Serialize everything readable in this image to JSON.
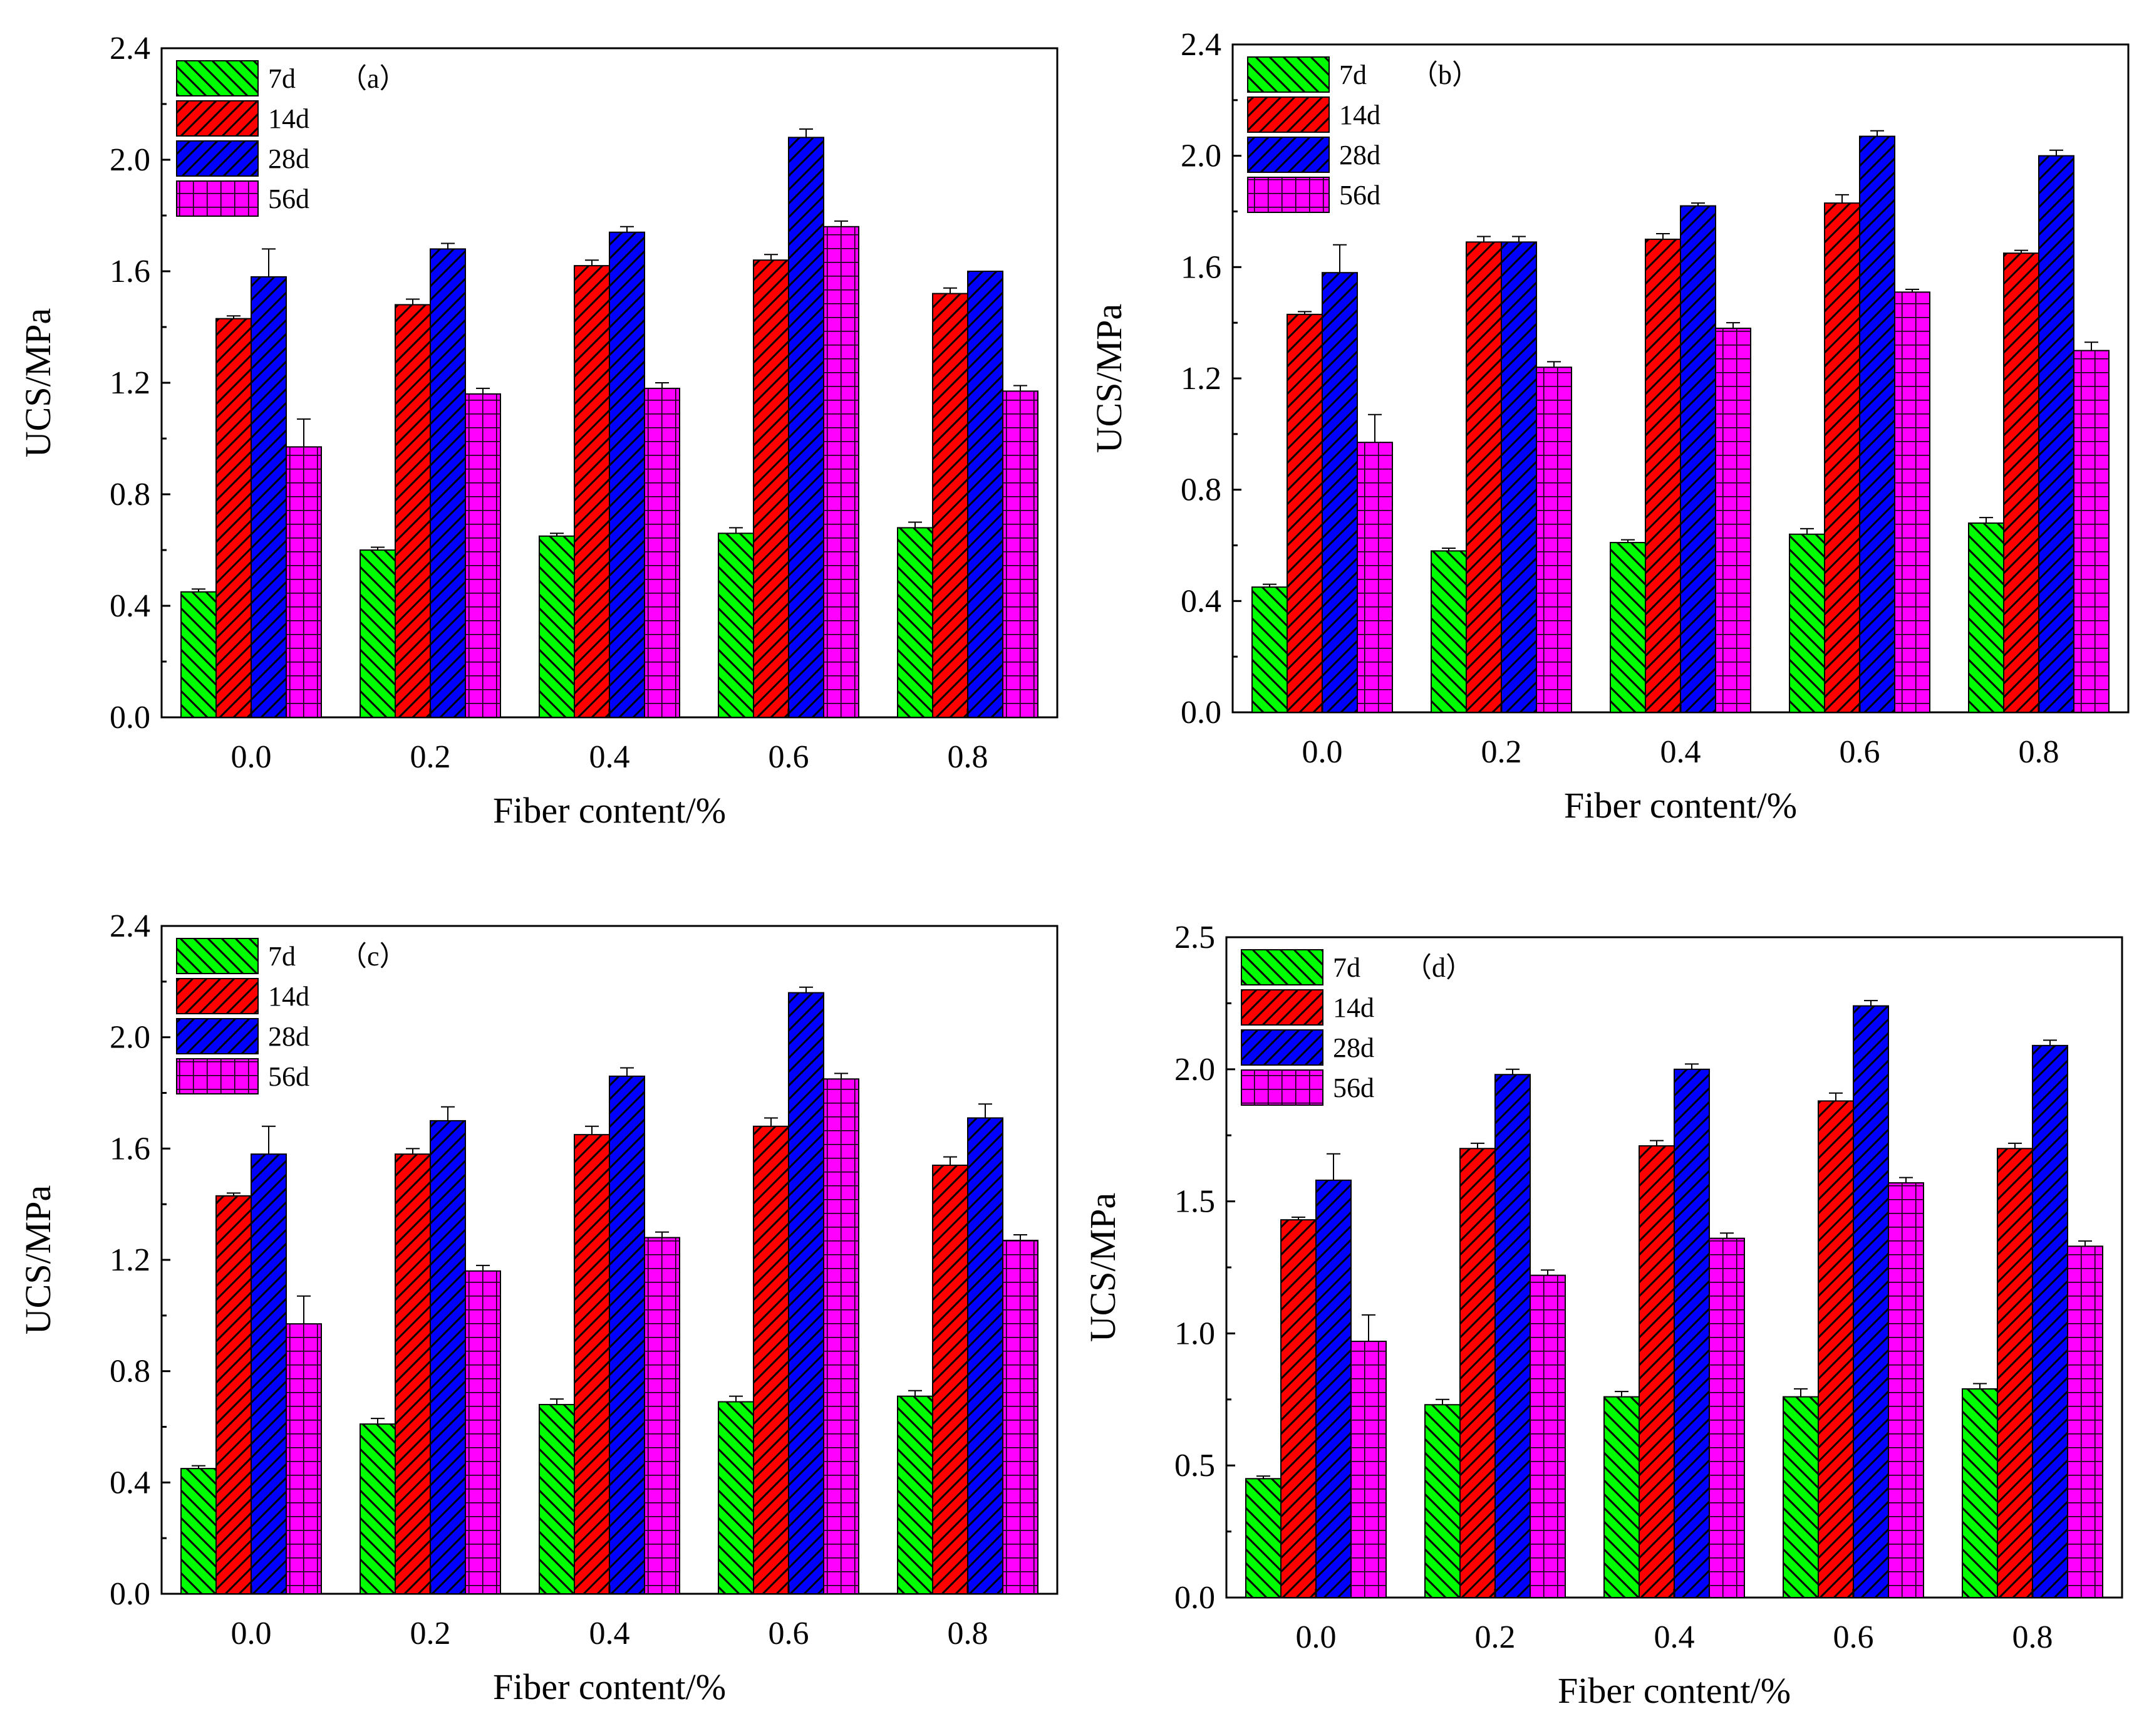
{
  "figure": {
    "patterns": {
      "7d": {
        "fill": "#00ff00",
        "hatch": "diag-down"
      },
      "14d": {
        "fill": "#ff0000",
        "hatch": "diag-up"
      },
      "28d": {
        "fill": "#0000ff",
        "hatch": "diag-up-dense"
      },
      "56d": {
        "fill": "#ff00ff",
        "hatch": "grid"
      }
    }
  },
  "chart_data": [
    {
      "type": "bar",
      "panel_label": "（a）",
      "xlabel": "Fiber content/%",
      "ylabel": "UCS/MPa",
      "categories": [
        "0.0",
        "0.2",
        "0.4",
        "0.6",
        "0.8"
      ],
      "ylim": [
        0,
        2.4
      ],
      "yticks": [
        "0.0",
        "0.4",
        "0.8",
        "1.2",
        "1.6",
        "2.0",
        "2.4"
      ],
      "legend_position": "top-left",
      "series": [
        {
          "name": "7d",
          "color": "#00ff00",
          "values": [
            0.45,
            0.6,
            0.65,
            0.66,
            0.68
          ],
          "errors": [
            0.01,
            0.01,
            0.01,
            0.02,
            0.02
          ]
        },
        {
          "name": "14d",
          "color": "#ff0000",
          "values": [
            1.43,
            1.48,
            1.62,
            1.64,
            1.52
          ],
          "errors": [
            0.01,
            0.02,
            0.02,
            0.02,
            0.02
          ]
        },
        {
          "name": "28d",
          "color": "#0000ff",
          "values": [
            1.58,
            1.68,
            1.74,
            2.08,
            1.6
          ],
          "errors": [
            0.1,
            0.02,
            0.02,
            0.03,
            0.0
          ]
        },
        {
          "name": "56d",
          "color": "#ff00ff",
          "values": [
            0.97,
            1.16,
            1.18,
            1.76,
            1.17
          ],
          "errors": [
            0.1,
            0.02,
            0.02,
            0.02,
            0.02
          ]
        }
      ]
    },
    {
      "type": "bar",
      "panel_label": "（b）",
      "xlabel": "Fiber content/%",
      "ylabel": "UCS/MPa",
      "categories": [
        "0.0",
        "0.2",
        "0.4",
        "0.6",
        "0.8"
      ],
      "ylim": [
        0,
        2.4
      ],
      "yticks": [
        "0.0",
        "0.4",
        "0.8",
        "1.2",
        "1.6",
        "2.0",
        "2.4"
      ],
      "legend_position": "top-left",
      "series": [
        {
          "name": "7d",
          "color": "#00ff00",
          "values": [
            0.45,
            0.58,
            0.61,
            0.64,
            0.68
          ],
          "errors": [
            0.01,
            0.01,
            0.01,
            0.02,
            0.02
          ]
        },
        {
          "name": "14d",
          "color": "#ff0000",
          "values": [
            1.43,
            1.69,
            1.7,
            1.83,
            1.65
          ],
          "errors": [
            0.01,
            0.02,
            0.02,
            0.03,
            0.01
          ]
        },
        {
          "name": "28d",
          "color": "#0000ff",
          "values": [
            1.58,
            1.69,
            1.82,
            2.07,
            2.0
          ],
          "errors": [
            0.1,
            0.02,
            0.01,
            0.02,
            0.02
          ]
        },
        {
          "name": "56d",
          "color": "#ff00ff",
          "values": [
            0.97,
            1.24,
            1.38,
            1.51,
            1.3
          ],
          "errors": [
            0.1,
            0.02,
            0.02,
            0.01,
            0.03
          ]
        }
      ]
    },
    {
      "type": "bar",
      "panel_label": "（c）",
      "xlabel": "Fiber content/%",
      "ylabel": "UCS/MPa",
      "categories": [
        "0.0",
        "0.2",
        "0.4",
        "0.6",
        "0.8"
      ],
      "ylim": [
        0,
        2.4
      ],
      "yticks": [
        "0.0",
        "0.4",
        "0.8",
        "1.2",
        "1.6",
        "2.0",
        "2.4"
      ],
      "legend_position": "top-left",
      "series": [
        {
          "name": "7d",
          "color": "#00ff00",
          "values": [
            0.45,
            0.61,
            0.68,
            0.69,
            0.71
          ],
          "errors": [
            0.01,
            0.02,
            0.02,
            0.02,
            0.02
          ]
        },
        {
          "name": "14d",
          "color": "#ff0000",
          "values": [
            1.43,
            1.58,
            1.65,
            1.68,
            1.54
          ],
          "errors": [
            0.01,
            0.02,
            0.03,
            0.03,
            0.03
          ]
        },
        {
          "name": "28d",
          "color": "#0000ff",
          "values": [
            1.58,
            1.7,
            1.86,
            2.16,
            1.71
          ],
          "errors": [
            0.1,
            0.05,
            0.03,
            0.02,
            0.05
          ]
        },
        {
          "name": "56d",
          "color": "#ff00ff",
          "values": [
            0.97,
            1.16,
            1.28,
            1.85,
            1.27
          ],
          "errors": [
            0.1,
            0.02,
            0.02,
            0.02,
            0.02
          ]
        }
      ]
    },
    {
      "type": "bar",
      "panel_label": "（d）",
      "xlabel": "Fiber content/%",
      "ylabel": "UCS/MPa",
      "categories": [
        "0.0",
        "0.2",
        "0.4",
        "0.6",
        "0.8"
      ],
      "ylim": [
        0,
        2.5
      ],
      "yticks": [
        "0.0",
        "0.5",
        "1.0",
        "1.5",
        "2.0",
        "2.5"
      ],
      "legend_position": "top-left",
      "series": [
        {
          "name": "7d",
          "color": "#00ff00",
          "values": [
            0.45,
            0.73,
            0.76,
            0.76,
            0.79
          ],
          "errors": [
            0.01,
            0.02,
            0.02,
            0.03,
            0.02
          ]
        },
        {
          "name": "14d",
          "color": "#ff0000",
          "values": [
            1.43,
            1.7,
            1.71,
            1.88,
            1.7
          ],
          "errors": [
            0.01,
            0.02,
            0.02,
            0.03,
            0.02
          ]
        },
        {
          "name": "28d",
          "color": "#0000ff",
          "values": [
            1.58,
            1.98,
            2.0,
            2.24,
            2.09
          ],
          "errors": [
            0.1,
            0.02,
            0.02,
            0.02,
            0.02
          ]
        },
        {
          "name": "56d",
          "color": "#ff00ff",
          "values": [
            0.97,
            1.22,
            1.36,
            1.57,
            1.33
          ],
          "errors": [
            0.1,
            0.02,
            0.02,
            0.02,
            0.02
          ]
        }
      ]
    }
  ]
}
